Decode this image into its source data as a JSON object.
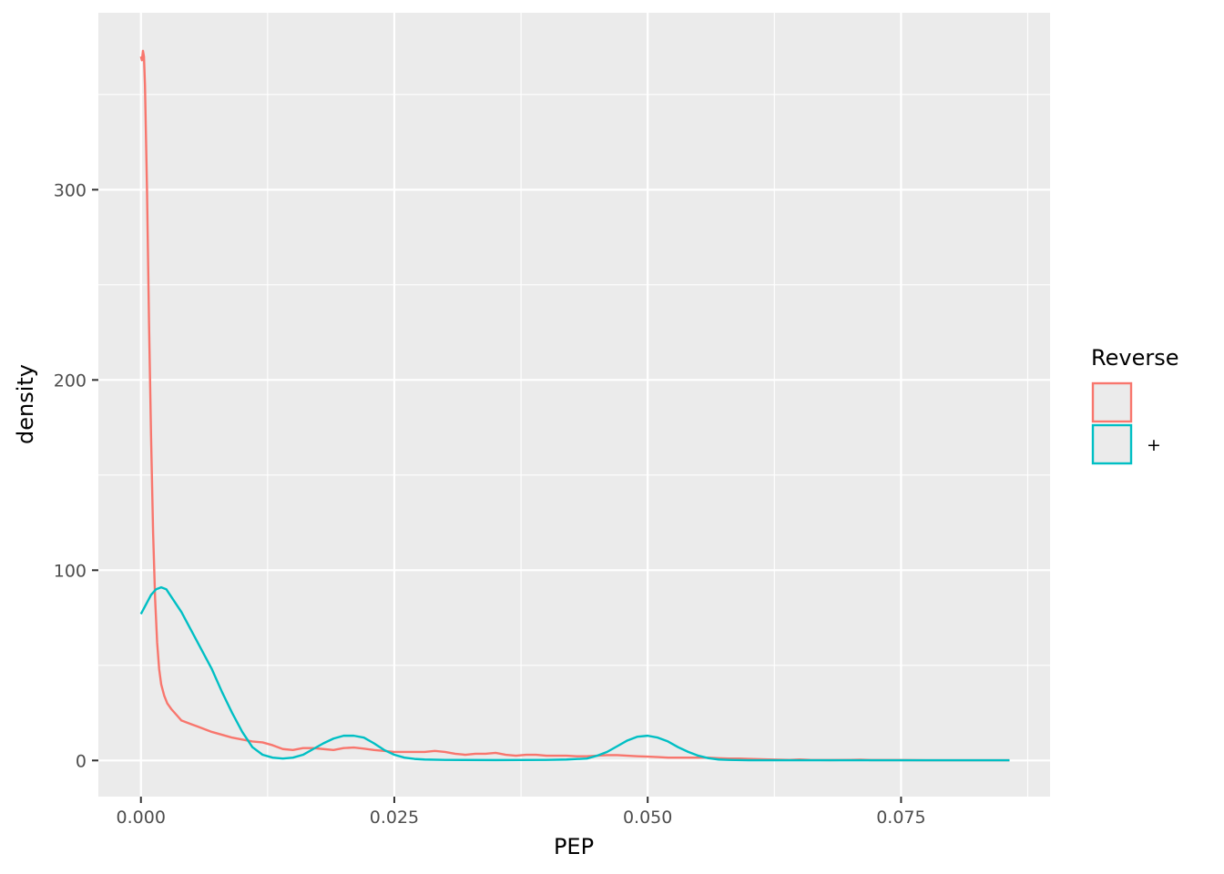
{
  "chart_data": {
    "type": "line",
    "subtype": "density",
    "xlabel": "PEP",
    "ylabel": "density",
    "xlim": [
      -0.0042,
      0.0897
    ],
    "ylim": [
      -19,
      393
    ],
    "x_ticks": [
      0.0,
      0.025,
      0.05,
      0.075
    ],
    "x_tick_labels": [
      "0.000",
      "0.025",
      "0.050",
      "0.075"
    ],
    "y_ticks": [
      0,
      100,
      200,
      300
    ],
    "y_tick_labels": [
      "0",
      "100",
      "200",
      "300"
    ],
    "grid": true,
    "legend": {
      "title": "Reverse",
      "position": "right",
      "entries": [
        {
          "label": "",
          "color": "#F8766D"
        },
        {
          "label": "+",
          "color": "#00BFC4"
        }
      ]
    },
    "series": [
      {
        "color": "#F8766D",
        "x": [
          0.0,
          0.0001,
          0.0002,
          0.0003,
          0.0004,
          0.0006,
          0.0008,
          0.001,
          0.0012,
          0.0014,
          0.0016,
          0.0018,
          0.002,
          0.0023,
          0.0026,
          0.003,
          0.0035,
          0.004,
          0.0045,
          0.005,
          0.0055,
          0.006,
          0.007,
          0.008,
          0.009,
          0.01,
          0.011,
          0.012,
          0.013,
          0.014,
          0.015,
          0.016,
          0.017,
          0.018,
          0.019,
          0.02,
          0.021,
          0.022,
          0.023,
          0.024,
          0.025,
          0.026,
          0.027,
          0.028,
          0.029,
          0.03,
          0.031,
          0.032,
          0.033,
          0.034,
          0.035,
          0.036,
          0.037,
          0.038,
          0.039,
          0.04,
          0.041,
          0.042,
          0.043,
          0.044,
          0.045,
          0.046,
          0.047,
          0.048,
          0.049,
          0.05,
          0.051,
          0.052,
          0.053,
          0.054,
          0.055,
          0.056,
          0.057,
          0.058,
          0.059,
          0.06,
          0.062,
          0.064,
          0.065,
          0.066,
          0.068,
          0.07,
          0.071,
          0.072,
          0.075,
          0.078,
          0.08,
          0.083,
          0.0857
        ],
        "y": [
          370,
          368,
          373,
          370,
          355,
          300,
          230,
          170,
          120,
          85,
          62,
          48,
          40,
          34,
          30,
          27,
          24,
          21,
          20,
          19,
          18,
          17,
          15,
          13.5,
          12,
          11,
          10,
          9.5,
          8,
          6,
          5.5,
          6.5,
          6.5,
          6,
          5.5,
          6.5,
          6.8,
          6.2,
          5.5,
          5,
          4.5,
          4.5,
          4.5,
          4.5,
          5,
          4.5,
          3.5,
          3,
          3.5,
          3.5,
          4,
          3,
          2.5,
          3,
          3,
          2.5,
          2.5,
          2.5,
          2.2,
          2.2,
          2.5,
          2.8,
          2.8,
          2.5,
          2.2,
          2,
          1.8,
          1.5,
          1.5,
          1.5,
          1.5,
          1.5,
          1.2,
          1,
          1,
          0.8,
          0.5,
          0.3,
          0.5,
          0.3,
          0.2,
          0.3,
          0.4,
          0.2,
          0.2,
          0.1,
          0.1,
          0.1,
          0.1
        ]
      },
      {
        "name": "+",
        "color": "#00BFC4",
        "x": [
          0.0,
          0.0005,
          0.001,
          0.0015,
          0.002,
          0.0025,
          0.003,
          0.004,
          0.005,
          0.006,
          0.007,
          0.008,
          0.009,
          0.01,
          0.011,
          0.012,
          0.013,
          0.014,
          0.015,
          0.016,
          0.017,
          0.018,
          0.019,
          0.02,
          0.021,
          0.022,
          0.023,
          0.024,
          0.025,
          0.026,
          0.027,
          0.028,
          0.03,
          0.035,
          0.04,
          0.042,
          0.044,
          0.045,
          0.046,
          0.047,
          0.048,
          0.049,
          0.05,
          0.051,
          0.052,
          0.053,
          0.054,
          0.055,
          0.056,
          0.057,
          0.058,
          0.06,
          0.065,
          0.07,
          0.075,
          0.08,
          0.0857
        ],
        "y": [
          77,
          82,
          87,
          90,
          91,
          90,
          86,
          78,
          68,
          58,
          48,
          36,
          25,
          15,
          7,
          3,
          1.5,
          1,
          1.5,
          3,
          6,
          9,
          11.5,
          13,
          13,
          12,
          9,
          5.5,
          3,
          1.5,
          0.8,
          0.5,
          0.3,
          0.2,
          0.3,
          0.5,
          1,
          2.5,
          4.5,
          7.5,
          10.5,
          12.5,
          13,
          12,
          10,
          7,
          4.5,
          2.5,
          1.2,
          0.5,
          0.3,
          0.1,
          0.1,
          0.1,
          0.1,
          0.1,
          0.1
        ]
      }
    ]
  }
}
